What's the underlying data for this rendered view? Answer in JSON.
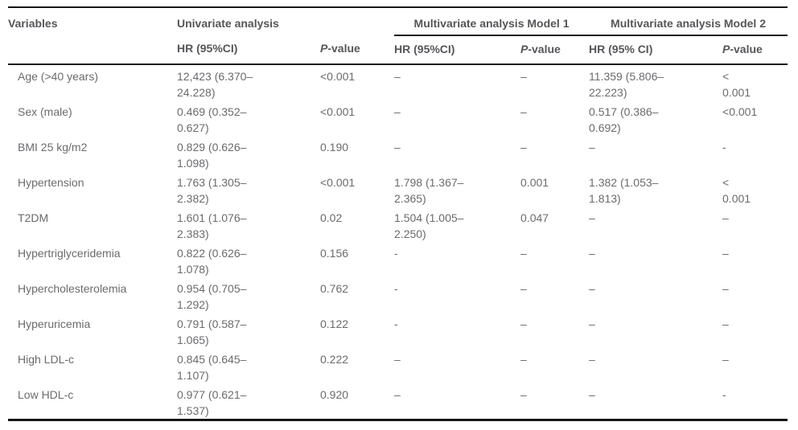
{
  "colors": {
    "header_text": "#55565a",
    "body_text": "#6a6b6e",
    "rule": "#161616",
    "background": "#ffffff"
  },
  "table": {
    "group_headers": {
      "variables": "Variables",
      "univariate": "Univariate analysis",
      "model1": "Multivariate analysis Model 1",
      "model2": "Multivariate analysis Model 2"
    },
    "sub_headers": {
      "univariate_hr": "HR (95%CI)",
      "model1_hr": "HR (95%CI)",
      "model2_hr": "HR (95% CI)",
      "p_italic": "P",
      "p_rest": "-value"
    },
    "rows": [
      {
        "variable": "Age (>40 years)",
        "cells": [
          "12,423 (6.370–\n24.228)",
          "<0.001",
          "–",
          "–",
          "11.359 (5.806–\n22.223)",
          "<\n0.001"
        ]
      },
      {
        "variable": "Sex (male)",
        "cells": [
          "0.469 (0.352–\n0.627)",
          "<0.001",
          "–",
          "–",
          "0.517 (0.386–\n0.692)",
          "<0.001"
        ]
      },
      {
        "variable": "BMI 25 kg/m2",
        "cells": [
          "0.829 (0.626–\n1.098)",
          "0.190",
          "–",
          "–",
          "–",
          "-"
        ]
      },
      {
        "variable": "Hypertension",
        "cells": [
          "1.763 (1.305–\n2.382)",
          "<0.001",
          "1.798 (1.367–\n2.365)",
          "0.001",
          "1.382 (1.053–\n1.813)",
          "<\n0.001"
        ]
      },
      {
        "variable": "T2DM",
        "cells": [
          "1.601 (1.076–\n2.383)",
          "0.02",
          "1.504 (1.005–\n2.250)",
          "0.047",
          "–",
          "–"
        ]
      },
      {
        "variable": "Hypertriglyceridemia",
        "cells": [
          "0.822 (0.626–\n1.078)",
          "0.156",
          "-",
          "–",
          "–",
          "–"
        ]
      },
      {
        "variable": "Hypercholesterolemia",
        "cells": [
          "0.954 (0.705–\n1.292)",
          "0.762",
          "-",
          "–",
          "–",
          "–"
        ]
      },
      {
        "variable": "Hyperuricemia",
        "cells": [
          "0.791 (0.587–\n1.065)",
          "0.122",
          "-",
          "–",
          "–",
          "–"
        ]
      },
      {
        "variable": "High LDL-c",
        "cells": [
          "0.845 (0.645–\n1.107)",
          "0.222",
          "–",
          "–",
          "–",
          "–"
        ]
      },
      {
        "variable": "Low HDL-c",
        "cells": [
          "0.977 (0.621–\n1.537)",
          "0.920",
          "–",
          "–",
          "–",
          "-"
        ]
      }
    ]
  }
}
